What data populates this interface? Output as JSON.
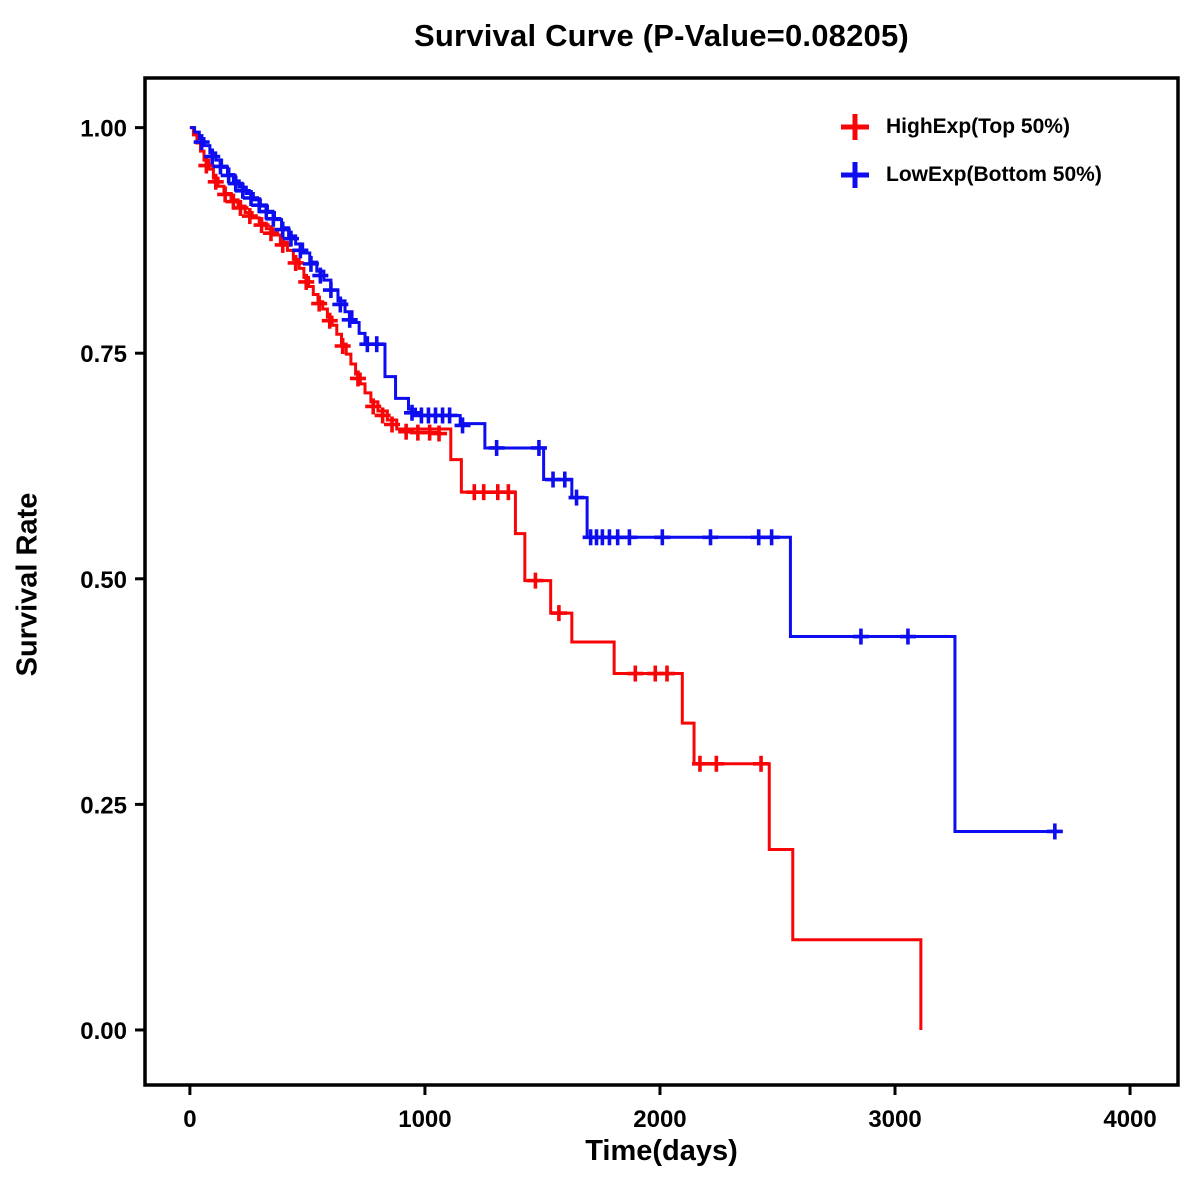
{
  "title": "Survival Curve (P-Value=0.08205)",
  "chart_data": {
    "type": "line",
    "subtype": "kaplan-meier-step",
    "title": "Survival Curve (P-Value=0.08205)",
    "xlabel": "Time(days)",
    "ylabel": "Survival Rate",
    "xlim": [
      -191,
      4204
    ],
    "ylim": [
      -0.061,
      1.055
    ],
    "grid": false,
    "legend_position": "top-right",
    "xticks": [
      {
        "v": 0,
        "label": "0"
      },
      {
        "v": 1000,
        "label": "1000"
      },
      {
        "v": 2000,
        "label": "2000"
      },
      {
        "v": 3000,
        "label": "3000"
      },
      {
        "v": 4000,
        "label": "4000"
      }
    ],
    "yticks": [
      {
        "v": 0.0,
        "label": "0.00"
      },
      {
        "v": 0.25,
        "label": "0.25"
      },
      {
        "v": 0.5,
        "label": "0.50"
      },
      {
        "v": 0.75,
        "label": "0.75"
      },
      {
        "v": 1.0,
        "label": "1.00"
      }
    ],
    "legend": [
      {
        "label": "HighExp(Top 50%)",
        "color": "#F80507"
      },
      {
        "label": "LowExp(Bottom 50%)",
        "color": "#0D0DF0"
      }
    ],
    "series": [
      {
        "name": "HighExp(Top 50%)",
        "color": "#F80507",
        "step": [
          [
            0,
            1.0
          ],
          [
            15,
            0.992
          ],
          [
            30,
            0.983
          ],
          [
            45,
            0.974
          ],
          [
            60,
            0.964
          ],
          [
            80,
            0.954
          ],
          [
            100,
            0.944
          ],
          [
            120,
            0.935
          ],
          [
            145,
            0.927
          ],
          [
            175,
            0.92
          ],
          [
            205,
            0.913
          ],
          [
            235,
            0.906
          ],
          [
            265,
            0.9
          ],
          [
            295,
            0.894
          ],
          [
            325,
            0.888
          ],
          [
            355,
            0.881
          ],
          [
            385,
            0.873
          ],
          [
            415,
            0.864
          ],
          [
            440,
            0.854
          ],
          [
            465,
            0.844
          ],
          [
            485,
            0.834
          ],
          [
            505,
            0.824
          ],
          [
            525,
            0.815
          ],
          [
            545,
            0.807
          ],
          [
            565,
            0.799
          ],
          [
            585,
            0.79
          ],
          [
            605,
            0.781
          ],
          [
            625,
            0.771
          ],
          [
            645,
            0.76
          ],
          [
            665,
            0.749
          ],
          [
            685,
            0.738
          ],
          [
            705,
            0.727
          ],
          [
            725,
            0.716
          ],
          [
            745,
            0.706
          ],
          [
            770,
            0.696
          ],
          [
            800,
            0.686
          ],
          [
            840,
            0.676
          ],
          [
            880,
            0.666
          ],
          [
            1110,
            0.632
          ],
          [
            1155,
            0.596
          ],
          [
            1385,
            0.55
          ],
          [
            1425,
            0.498
          ],
          [
            1535,
            0.462
          ],
          [
            1625,
            0.43
          ],
          [
            1805,
            0.395
          ],
          [
            2095,
            0.34
          ],
          [
            2145,
            0.295
          ],
          [
            2465,
            0.2
          ],
          [
            2565,
            0.1
          ],
          [
            3110,
            0.0
          ]
        ],
        "censor": [
          [
            70,
            0.958
          ],
          [
            110,
            0.94
          ],
          [
            150,
            0.926
          ],
          [
            185,
            0.918
          ],
          [
            215,
            0.911
          ],
          [
            255,
            0.902
          ],
          [
            305,
            0.892
          ],
          [
            345,
            0.883
          ],
          [
            395,
            0.87
          ],
          [
            450,
            0.85
          ],
          [
            495,
            0.829
          ],
          [
            550,
            0.805
          ],
          [
            595,
            0.786
          ],
          [
            650,
            0.758
          ],
          [
            715,
            0.722
          ],
          [
            780,
            0.691
          ],
          [
            820,
            0.681
          ],
          [
            860,
            0.671
          ],
          [
            920,
            0.663
          ],
          [
            970,
            0.662
          ],
          [
            1020,
            0.662
          ],
          [
            1060,
            0.661
          ],
          [
            1210,
            0.596
          ],
          [
            1250,
            0.596
          ],
          [
            1310,
            0.596
          ],
          [
            1355,
            0.596
          ],
          [
            1470,
            0.498
          ],
          [
            1570,
            0.462
          ],
          [
            1895,
            0.395
          ],
          [
            1980,
            0.395
          ],
          [
            2030,
            0.395
          ],
          [
            2170,
            0.295
          ],
          [
            2240,
            0.295
          ],
          [
            2430,
            0.295
          ]
        ]
      },
      {
        "name": "LowExp(Bottom 50%)",
        "color": "#0D0DF0",
        "step": [
          [
            0,
            1.0
          ],
          [
            20,
            0.995
          ],
          [
            40,
            0.988
          ],
          [
            60,
            0.98
          ],
          [
            85,
            0.972
          ],
          [
            110,
            0.964
          ],
          [
            135,
            0.956
          ],
          [
            160,
            0.948
          ],
          [
            185,
            0.941
          ],
          [
            210,
            0.934
          ],
          [
            240,
            0.927
          ],
          [
            270,
            0.92
          ],
          [
            300,
            0.913
          ],
          [
            330,
            0.906
          ],
          [
            360,
            0.898
          ],
          [
            390,
            0.889
          ],
          [
            420,
            0.88
          ],
          [
            450,
            0.871
          ],
          [
            480,
            0.861
          ],
          [
            510,
            0.851
          ],
          [
            540,
            0.841
          ],
          [
            570,
            0.831
          ],
          [
            600,
            0.82
          ],
          [
            630,
            0.808
          ],
          [
            660,
            0.796
          ],
          [
            690,
            0.784
          ],
          [
            720,
            0.772
          ],
          [
            745,
            0.76
          ],
          [
            830,
            0.724
          ],
          [
            875,
            0.7
          ],
          [
            930,
            0.688
          ],
          [
            960,
            0.681
          ],
          [
            1150,
            0.672
          ],
          [
            1255,
            0.645
          ],
          [
            1505,
            0.61
          ],
          [
            1625,
            0.59
          ],
          [
            1690,
            0.546
          ],
          [
            2555,
            0.436
          ],
          [
            3255,
            0.22
          ],
          [
            3700,
            0.22
          ]
        ],
        "censor": [
          [
            50,
            0.984
          ],
          [
            95,
            0.968
          ],
          [
            130,
            0.957
          ],
          [
            165,
            0.947
          ],
          [
            195,
            0.938
          ],
          [
            225,
            0.93
          ],
          [
            260,
            0.922
          ],
          [
            295,
            0.914
          ],
          [
            325,
            0.907
          ],
          [
            355,
            0.899
          ],
          [
            395,
            0.887
          ],
          [
            430,
            0.877
          ],
          [
            470,
            0.864
          ],
          [
            515,
            0.849
          ],
          [
            555,
            0.836
          ],
          [
            600,
            0.82
          ],
          [
            640,
            0.804
          ],
          [
            680,
            0.787
          ],
          [
            755,
            0.76
          ],
          [
            795,
            0.76
          ],
          [
            945,
            0.684
          ],
          [
            985,
            0.681
          ],
          [
            1015,
            0.681
          ],
          [
            1045,
            0.681
          ],
          [
            1075,
            0.681
          ],
          [
            1105,
            0.681
          ],
          [
            1160,
            0.67
          ],
          [
            1305,
            0.645
          ],
          [
            1485,
            0.645
          ],
          [
            1545,
            0.61
          ],
          [
            1595,
            0.61
          ],
          [
            1645,
            0.59
          ],
          [
            1705,
            0.546
          ],
          [
            1730,
            0.546
          ],
          [
            1755,
            0.546
          ],
          [
            1785,
            0.546
          ],
          [
            1820,
            0.546
          ],
          [
            1870,
            0.546
          ],
          [
            2010,
            0.546
          ],
          [
            2215,
            0.546
          ],
          [
            2420,
            0.546
          ],
          [
            2475,
            0.546
          ],
          [
            2855,
            0.436
          ],
          [
            3055,
            0.436
          ],
          [
            3680,
            0.22
          ]
        ]
      }
    ]
  }
}
